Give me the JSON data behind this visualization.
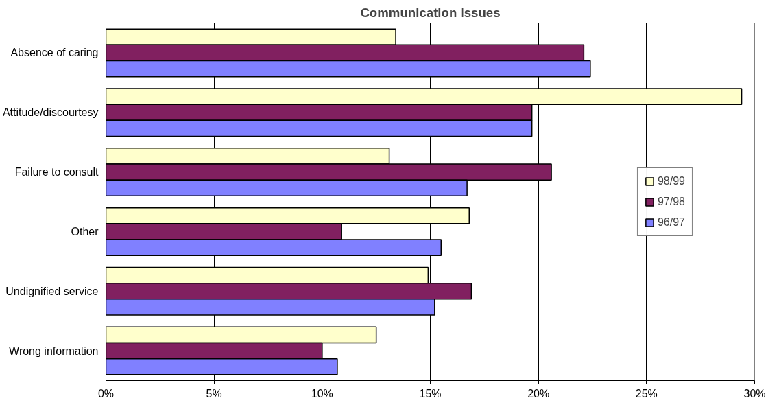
{
  "chart_data": {
    "type": "bar",
    "orientation": "horizontal",
    "title": "Communication Issues",
    "categories": [
      "Absence of caring",
      "Attitude/discourtesy",
      "Failure to consult",
      "Other",
      "Undignified service",
      "Wrong information"
    ],
    "series": [
      {
        "name": "98/99",
        "color": "#ffffcc",
        "values": [
          13.4,
          29.4,
          13.1,
          16.8,
          14.9,
          12.5
        ]
      },
      {
        "name": "97/98",
        "color": "#812060",
        "values": [
          22.1,
          19.7,
          20.6,
          10.9,
          16.9,
          10.0
        ]
      },
      {
        "name": "96/97",
        "color": "#8080ff",
        "values": [
          22.4,
          19.7,
          16.7,
          15.5,
          15.2,
          10.7
        ]
      }
    ],
    "xlim": [
      0,
      30
    ],
    "xticks": [
      {
        "value": 0,
        "label": "0%"
      },
      {
        "value": 5,
        "label": "5%"
      },
      {
        "value": 10,
        "label": "10%"
      },
      {
        "value": 15,
        "label": "15%"
      },
      {
        "value": 20,
        "label": "20%"
      },
      {
        "value": 25,
        "label": "25%"
      },
      {
        "value": 30,
        "label": "30%"
      }
    ],
    "grid": "x",
    "legend": "right"
  }
}
